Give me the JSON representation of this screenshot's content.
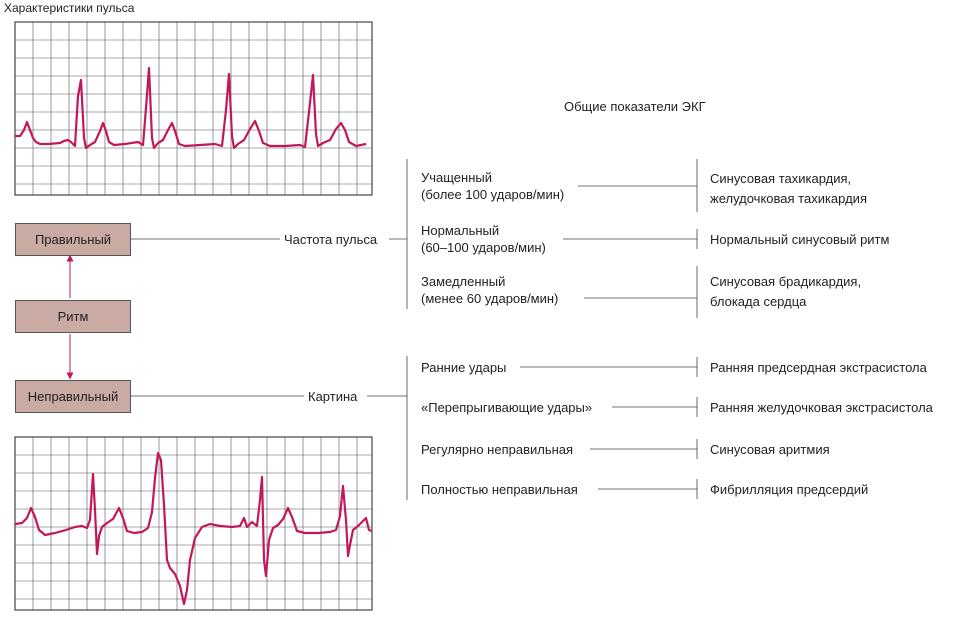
{
  "figure": {
    "title": "Характеристики пульса",
    "subtitle": "Общие показатели ЭКГ",
    "colors": {
      "trace": "#c2185b",
      "grid": "#444444",
      "box": "#c9aba4",
      "arrow": "#c2185b"
    }
  },
  "rhythm": {
    "regular": "Правильный",
    "center": "Ритм",
    "irregular": "Неправильный"
  },
  "branches": {
    "rate": "Частота пульса",
    "pattern": "Картина"
  },
  "rate_items": [
    {
      "line1": "Учащенный",
      "line2": "(более 100 ударов/мин)",
      "res1": "Синусовая тахикардия,",
      "res2": "желудочковая тахикардия"
    },
    {
      "line1": "Нормальный",
      "line2": "(60–100 ударов/мин)",
      "res1": "Нормальный синусовый ритм",
      "res2": ""
    },
    {
      "line1": "Замедленный",
      "line2": "(менее 60 ударов/мин)",
      "res1": "Синусовая брадикардия,",
      "res2": "блокада сердца"
    }
  ],
  "pattern_items": [
    {
      "label": "Ранние удары",
      "result": "Ранняя предсердная экстрасистола"
    },
    {
      "label": "«Перепрыгивающие удары»",
      "result": "Ранняя желудочковая экстрасистола"
    },
    {
      "label": "Регулярно неправильная",
      "result": "Синусовая аритмия"
    },
    {
      "label": "Полностью неправильная",
      "result": "Фибрилляция предсердий"
    }
  ]
}
